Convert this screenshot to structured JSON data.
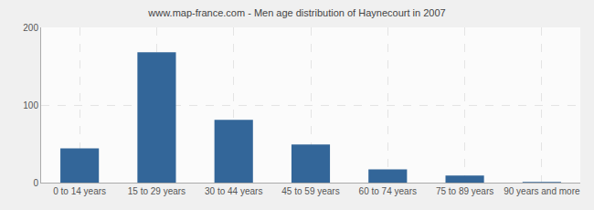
{
  "chart_data": {
    "type": "bar",
    "title": "www.map-france.com - Men age distribution of Haynecourt in 2007",
    "categories": [
      "0 to 14 years",
      "15 to 29 years",
      "30 to 44 years",
      "45 to 59 years",
      "60 to 74 years",
      "75 to 89 years",
      "90 years and more"
    ],
    "values": [
      44,
      168,
      81,
      49,
      17,
      9,
      1
    ],
    "color": "#336699",
    "ylim": [
      0,
      200
    ],
    "yticks": [
      0,
      100,
      200
    ],
    "grid": true
  }
}
